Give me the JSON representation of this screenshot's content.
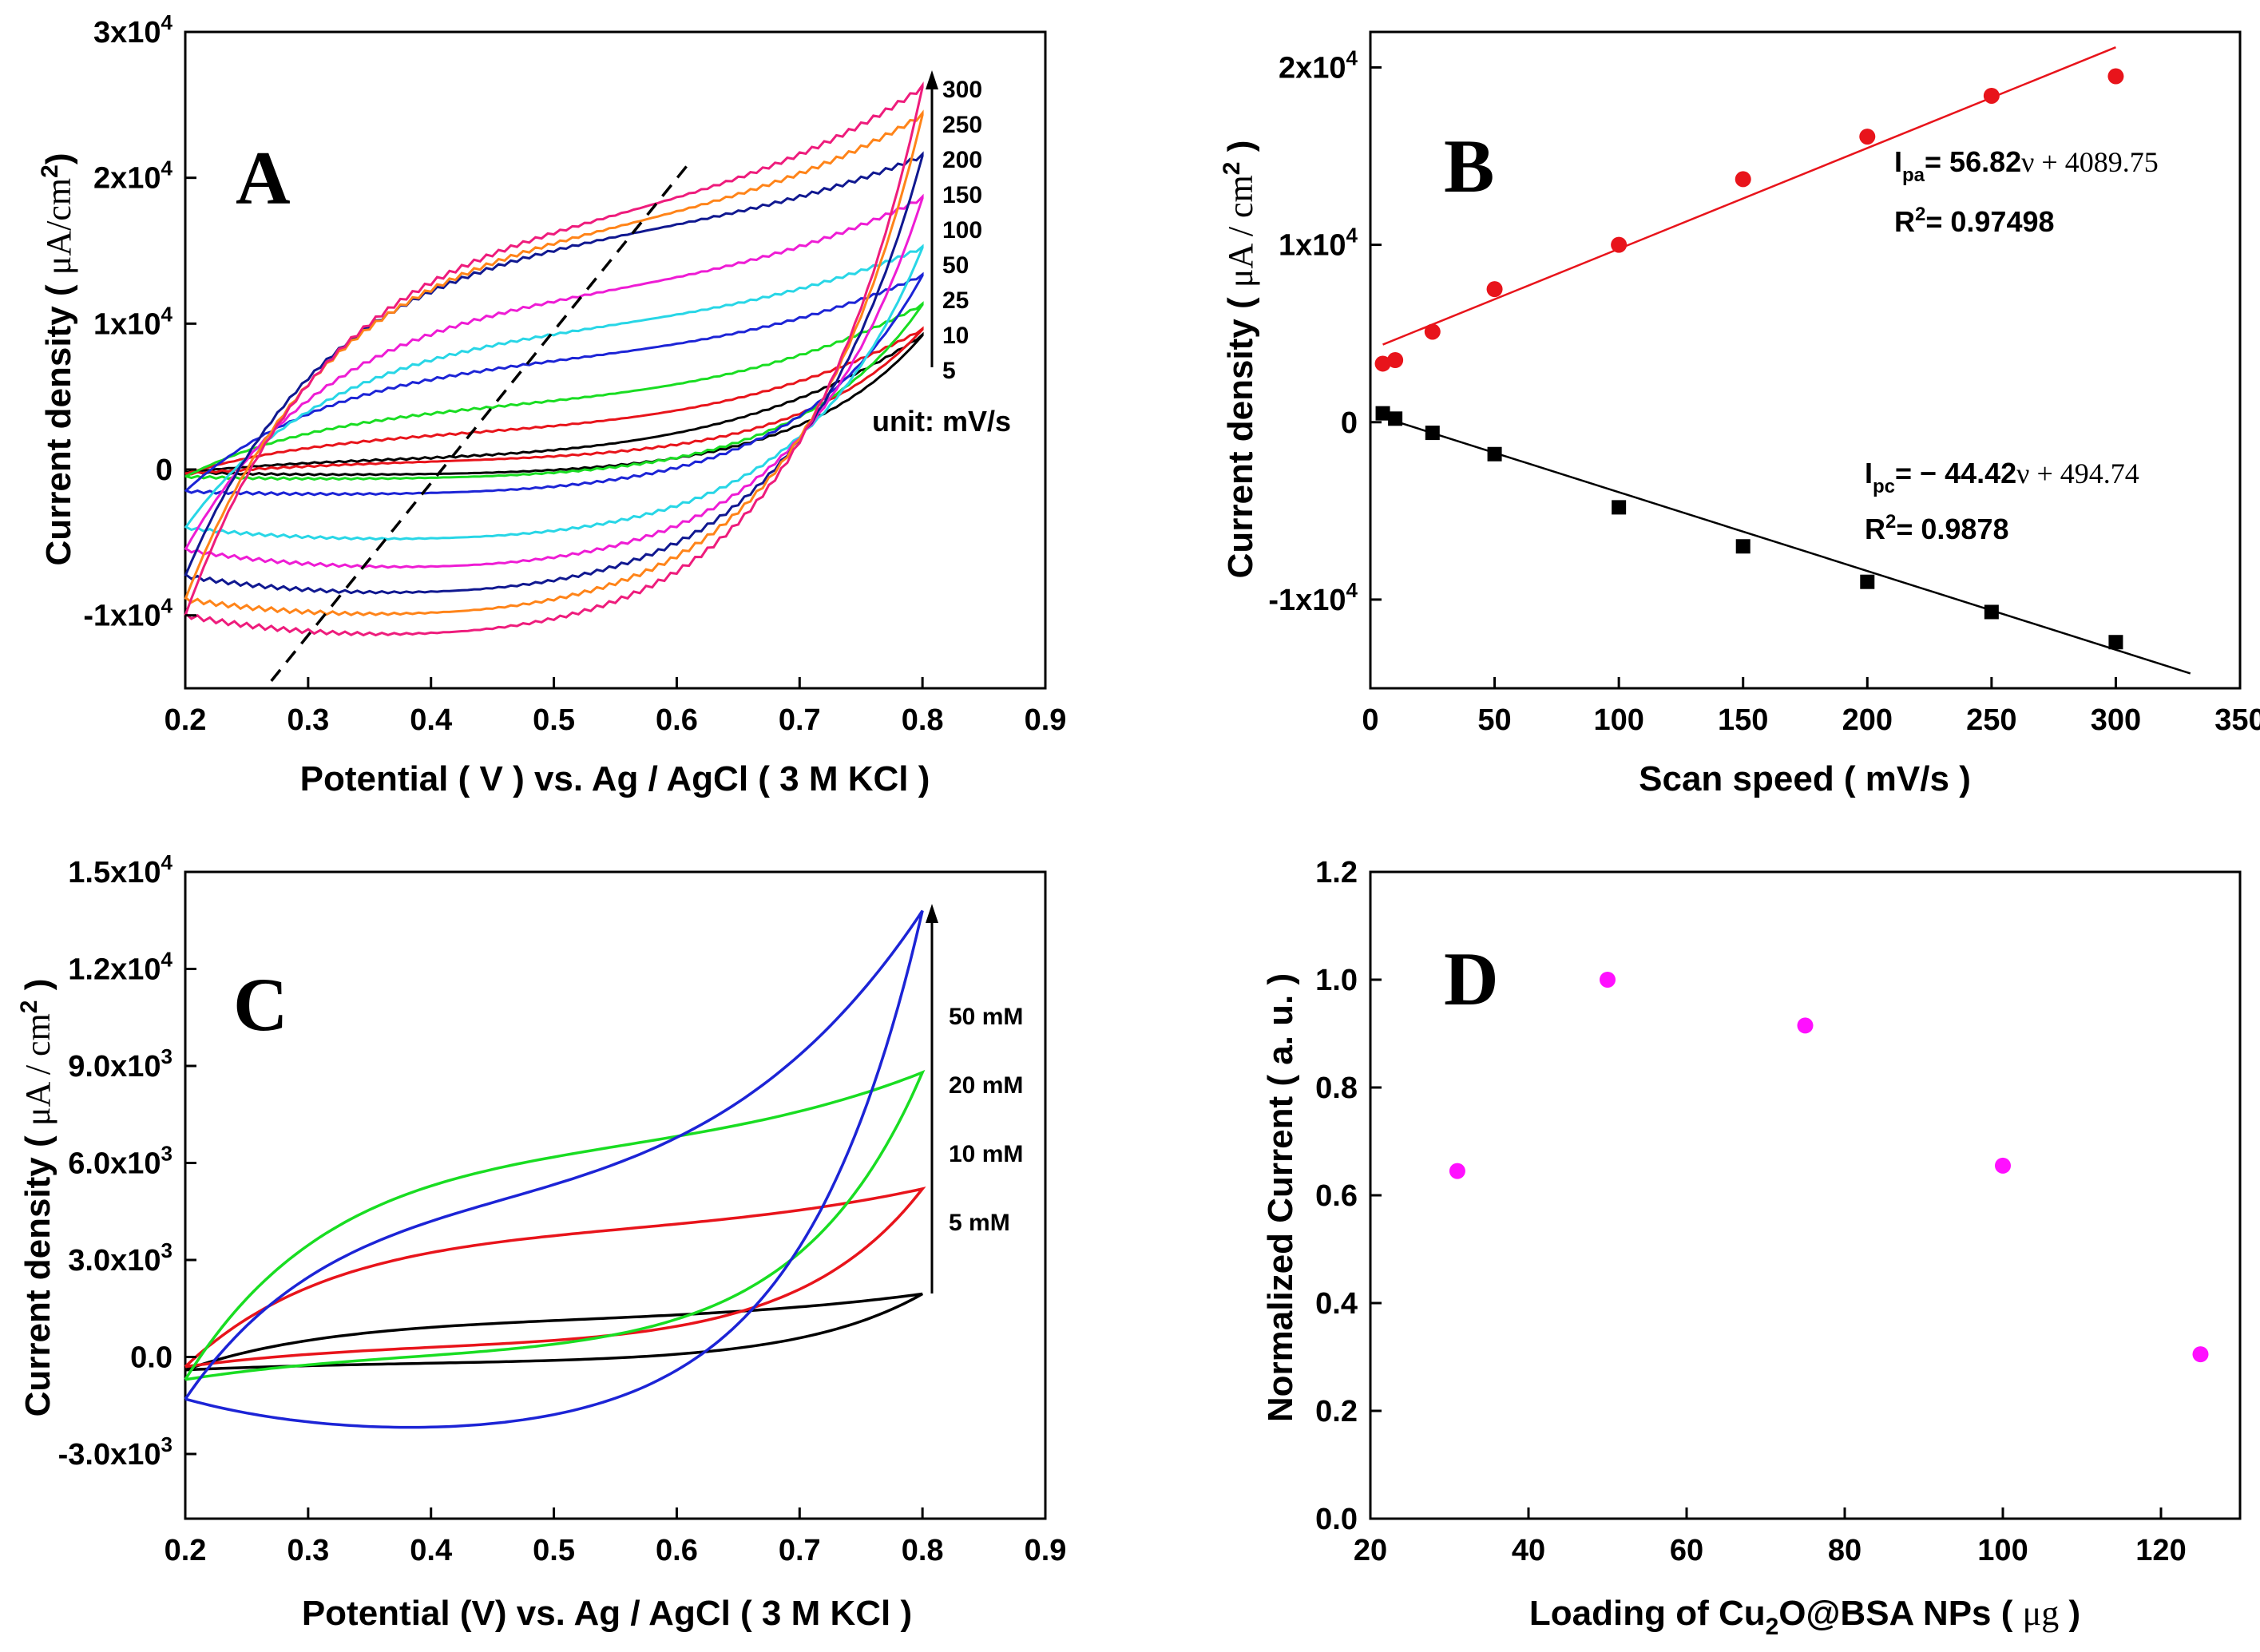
{
  "chart_data": [
    {
      "panel": "A",
      "type": "line",
      "panel_label": "A",
      "xlabel": "Potential ( V ) vs. Ag / AgCl ( 3 M KCl )",
      "ylabel": {
        "main": "Current density ( ",
        "unit": "μA/cm",
        "sup": "2",
        "close": ")"
      },
      "xlim": [
        0.2,
        0.9
      ],
      "ylim": [
        -15000,
        30000
      ],
      "xticks": [
        "0.2",
        "0.3",
        "0.4",
        "0.5",
        "0.6",
        "0.7",
        "0.8",
        "0.9"
      ],
      "xtick_values": [
        0.2,
        0.3,
        0.4,
        0.5,
        0.6,
        0.7,
        0.8,
        0.9
      ],
      "yticks": [
        {
          "v": 30000,
          "base": "3x10",
          "exp": "4"
        },
        {
          "v": 20000,
          "base": "2x10",
          "exp": "4"
        },
        {
          "v": 10000,
          "base": "1x10",
          "exp": "4"
        },
        {
          "v": 0,
          "base": "0",
          "exp": ""
        },
        {
          "v": -10000,
          "base": "-1x10",
          "exp": "4"
        }
      ],
      "legend_labels": [
        "300",
        "250",
        "200",
        "150",
        "100",
        "50",
        "25",
        "10",
        "5"
      ],
      "unit_note": "unit: mV/s",
      "series": [
        {
          "name": "5 mV/s",
          "color": "#000000",
          "i_start": -200,
          "i_mid_ox": 900,
          "i_max": 9200,
          "i_mid_red": -500
        },
        {
          "name": "10 mV/s",
          "color": "#e8141b",
          "i_start": -300,
          "i_mid_ox": 2800,
          "i_max": 9600,
          "i_mid_red": 500
        },
        {
          "name": "25 mV/s",
          "color": "#19dd22",
          "i_start": -500,
          "i_mid_ox": 4700,
          "i_max": 11300,
          "i_mid_red": -800
        },
        {
          "name": "50 mV/s",
          "color": "#1c24d6",
          "i_start": -1500,
          "i_mid_ox": 7800,
          "i_max": 13300,
          "i_mid_red": -1900
        },
        {
          "name": "100 mV/s",
          "color": "#28d6e6",
          "i_start": -4000,
          "i_mid_ox": 10000,
          "i_max": 15200,
          "i_mid_red": -5200
        },
        {
          "name": "150 mV/s",
          "color": "#ee1cd4",
          "i_start": -5500,
          "i_mid_ox": 12500,
          "i_max": 18600,
          "i_mid_red": -7300
        },
        {
          "name": "200 mV/s",
          "color": "#101890",
          "i_start": -7300,
          "i_mid_ox": 16500,
          "i_max": 21500,
          "i_mid_red": -9100
        },
        {
          "name": "250 mV/s",
          "color": "#ff8419",
          "i_start": -8900,
          "i_mid_ox": 17000,
          "i_max": 24300,
          "i_mid_red": -10600
        },
        {
          "name": "300 mV/s",
          "color": "#ee1c7c",
          "i_start": -10000,
          "i_mid_ox": 17800,
          "i_max": 26200,
          "i_mid_red": -12100
        }
      ],
      "trend_line": {
        "x": [
          0.27,
          0.61
        ],
        "y": [
          -14500,
          21000
        ]
      }
    },
    {
      "panel": "B",
      "type": "scatter",
      "panel_label": "B",
      "xlabel": "Scan speed ( mV/s )",
      "ylabel": {
        "main": "Current density ( ",
        "unit": "μA / cm",
        "sup": "2",
        "close": " )"
      },
      "xlim": [
        0,
        350
      ],
      "ylim": [
        -15000,
        22000
      ],
      "xticks": [
        "0",
        "50",
        "100",
        "150",
        "200",
        "250",
        "300",
        "350"
      ],
      "xtick_values": [
        0,
        50,
        100,
        150,
        200,
        250,
        300,
        350
      ],
      "yticks": [
        {
          "v": 20000,
          "base": "2x10",
          "exp": "4"
        },
        {
          "v": 10000,
          "base": "1x10",
          "exp": "4"
        },
        {
          "v": 0,
          "base": "0",
          "exp": ""
        },
        {
          "v": -10000,
          "base": "-1x10",
          "exp": "4"
        }
      ],
      "series": [
        {
          "name": "Ipa",
          "color": "#e8141b",
          "marker": "circle",
          "x": [
            5,
            10,
            25,
            50,
            100,
            150,
            200,
            250,
            300
          ],
          "y": [
            3300,
            3500,
            5100,
            7500,
            10000,
            13700,
            16100,
            18400,
            19500
          ],
          "fit": {
            "slope": 56.82,
            "intercept": 4089.75,
            "x_range": [
              5,
              300
            ]
          }
        },
        {
          "name": "Ipc",
          "color": "#000000",
          "marker": "square",
          "x": [
            5,
            10,
            25,
            50,
            100,
            150,
            200,
            250,
            300
          ],
          "y": [
            500,
            200,
            -600,
            -1800,
            -4800,
            -7000,
            -9000,
            -10700,
            -12400
          ],
          "fit": {
            "slope": -44.42,
            "intercept": 494.74,
            "x_range": [
              5,
              330
            ]
          }
        }
      ],
      "annotations": {
        "ipa_eq_prefix": "I",
        "ipa_eq_sub": "pa",
        "ipa_eq_bold": "= 56.82",
        "ipa_eq_rest": "ν + 4089.75",
        "ipa_r2_prefix": "R",
        "ipa_r2_sup": "2",
        "ipa_r2_value": "= 0.97498",
        "ipc_eq_prefix": "I",
        "ipc_eq_sub": "pc",
        "ipc_eq_bold": "= − 44.42",
        "ipc_eq_rest": "ν + 494.74",
        "ipc_r2_prefix": "R",
        "ipc_r2_sup": "2",
        "ipc_r2_value": "= 0.9878"
      }
    },
    {
      "panel": "C",
      "type": "line",
      "panel_label": "C",
      "xlabel": "Potential (V) vs. Ag / AgCl ( 3 M KCl )",
      "ylabel": {
        "main": "Current density ( ",
        "unit": "μA / cm",
        "sup": "2",
        "close": " )"
      },
      "xlim": [
        0.2,
        0.9
      ],
      "ylim": [
        -5000,
        15000
      ],
      "xticks": [
        "0.2",
        "0.3",
        "0.4",
        "0.5",
        "0.6",
        "0.7",
        "0.8",
        "0.9"
      ],
      "xtick_values": [
        0.2,
        0.3,
        0.4,
        0.5,
        0.6,
        0.7,
        0.8,
        0.9
      ],
      "yticks": [
        {
          "v": 15000,
          "base": "1.5x10",
          "exp": "4"
        },
        {
          "v": 12000,
          "base": "1.2x10",
          "exp": "4"
        },
        {
          "v": 9000,
          "base": "9.0x10",
          "exp": "3"
        },
        {
          "v": 6000,
          "base": "6.0x10",
          "exp": "3"
        },
        {
          "v": 3000,
          "base": "3.0x10",
          "exp": "3"
        },
        {
          "v": 0,
          "base": "0.0",
          "exp": ""
        },
        {
          "v": -3000,
          "base": "-3.0x10",
          "exp": "3"
        }
      ],
      "legend_labels": [
        "50 mM",
        "20 mM",
        "10 mM",
        "5 mM"
      ],
      "series": [
        {
          "name": "5 mM",
          "color": "#000000",
          "i_start": -400,
          "i_mid_ox": 1200,
          "i_max": 1950,
          "i_mid_red": -200
        },
        {
          "name": "10 mM",
          "color": "#e8141b",
          "i_start": -300,
          "i_mid_ox": 4000,
          "i_max": 5200,
          "i_mid_red": 300
        },
        {
          "name": "20 mM",
          "color": "#19dd22",
          "i_start": -700,
          "i_mid_ox": 6600,
          "i_max": 8800,
          "i_mid_red": 0
        },
        {
          "name": "50 mM",
          "color": "#1c24d6",
          "i_start": -1300,
          "i_mid_ox": 5300,
          "i_max": 13800,
          "i_mid_red": -2600
        }
      ]
    },
    {
      "panel": "D",
      "type": "scatter",
      "panel_label": "D",
      "xlabel": {
        "pre": "Loading of Cu",
        "sub": "2",
        "post": "O@BSA NPs ( ",
        "unit": "μg",
        "close": " )"
      },
      "ylabel": "Normalized Current ( a. u. )",
      "xlim": [
        20,
        130
      ],
      "ylim": [
        0,
        1.2
      ],
      "xticks": [
        "20",
        "40",
        "60",
        "80",
        "100",
        "120"
      ],
      "xtick_values": [
        20,
        40,
        60,
        80,
        100,
        120
      ],
      "yticks": [
        {
          "v": 1.2,
          "base": "1.2",
          "exp": ""
        },
        {
          "v": 1.0,
          "base": "1.0",
          "exp": ""
        },
        {
          "v": 0.8,
          "base": "0.8",
          "exp": ""
        },
        {
          "v": 0.6,
          "base": "0.6",
          "exp": ""
        },
        {
          "v": 0.4,
          "base": "0.4",
          "exp": ""
        },
        {
          "v": 0.2,
          "base": "0.2",
          "exp": ""
        },
        {
          "v": 0.0,
          "base": "0.0",
          "exp": ""
        }
      ],
      "series": [
        {
          "name": "Normalized current",
          "color": "#ff10ff",
          "marker": "circle",
          "x": [
            31,
            50,
            75,
            100,
            125
          ],
          "y": [
            0.645,
            1.0,
            0.915,
            0.655,
            0.305
          ]
        }
      ]
    }
  ]
}
